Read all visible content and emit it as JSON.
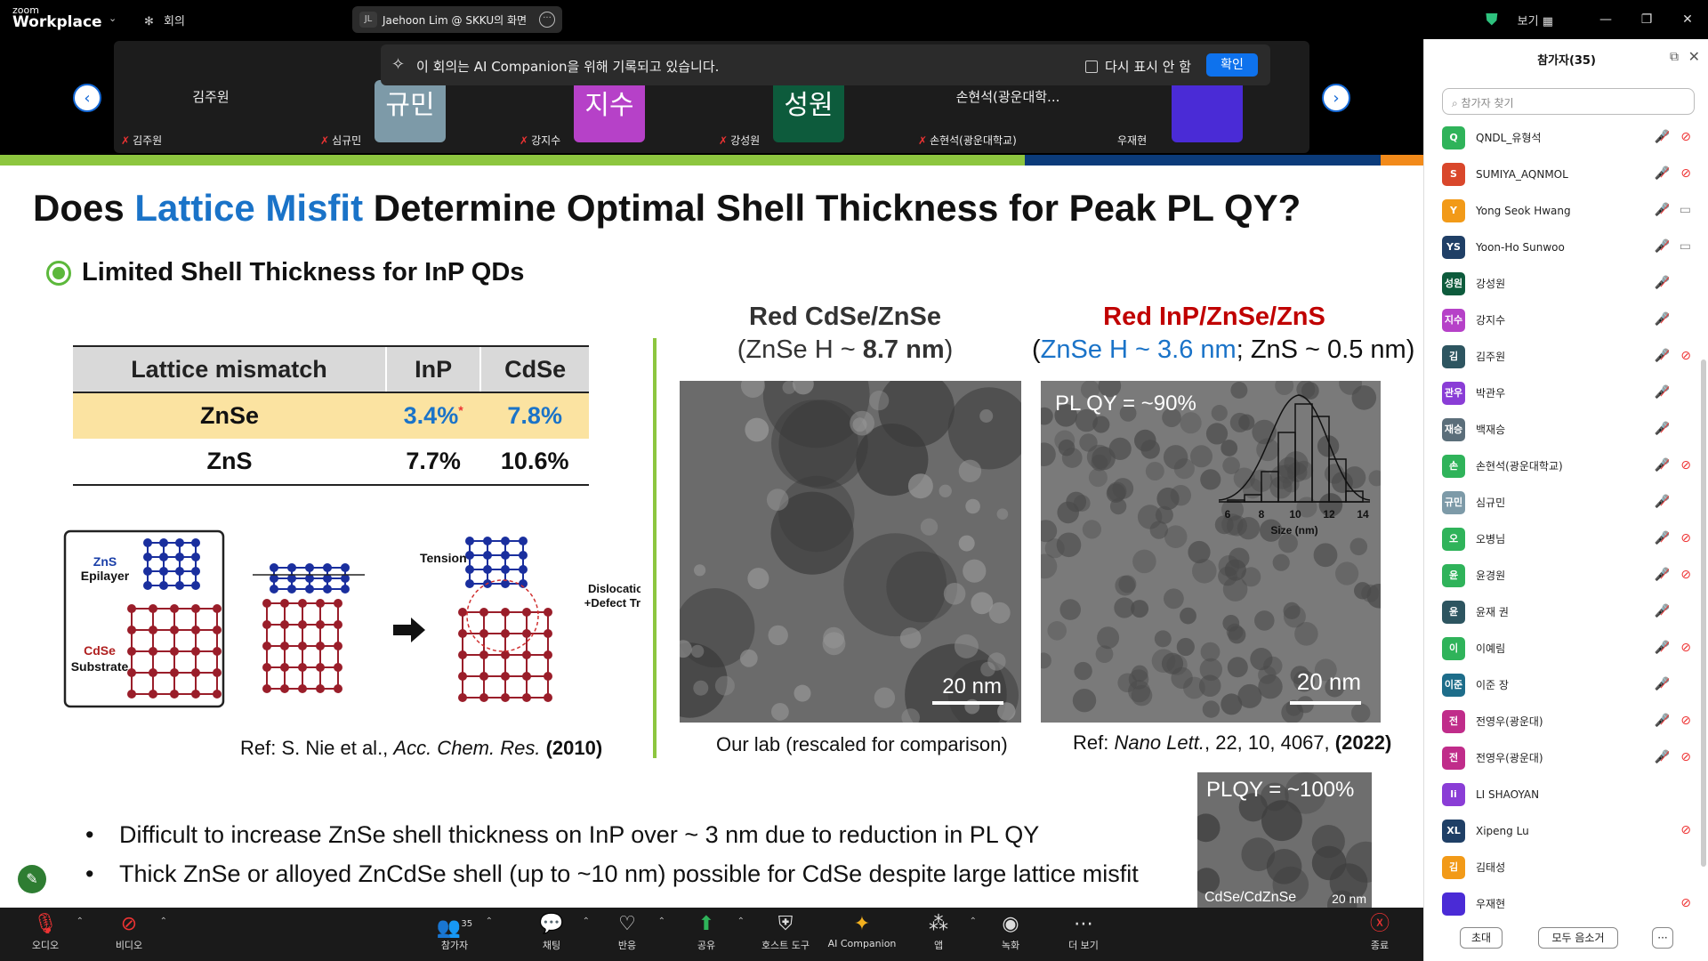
{
  "titlebar": {
    "brand_small": "zoom",
    "brand": "Workplace",
    "meetings_label": "회의",
    "share_avatar": "JL",
    "share_title": "Jaehoon Lim @ SKKU의 화면",
    "view_label": "보기 ▦"
  },
  "gallery": {
    "tiles": [
      {
        "label": "김주원",
        "big_name": "김주원",
        "avatar_text": "",
        "color": ""
      },
      {
        "label": "심규민",
        "big_name": "",
        "avatar_text": "규민",
        "color": "#7d9aa8"
      },
      {
        "label": "강지수",
        "big_name": "",
        "avatar_text": "지수",
        "color": "#b641c8"
      },
      {
        "label": "강성원",
        "big_name": "",
        "avatar_text": "성원",
        "color": "#0d5b3c"
      },
      {
        "label": "손현석(광운대학교)",
        "big_name": "손현석(광운대학...",
        "avatar_text": "",
        "color": ""
      },
      {
        "label": "우재현",
        "big_name": "",
        "avatar_text": "",
        "color": "#4a2bd6"
      }
    ]
  },
  "ai_banner": {
    "text": "이 회의는 AI Companion을 위해 기록되고 있습니다.",
    "checkbox_label": "다시 표시 안 함",
    "confirm": "확인"
  },
  "slide": {
    "title_pre": "Does ",
    "title_highlight": "Lattice Misfit",
    "title_post": " Determine Optimal Shell Thickness for Peak PL QY?",
    "subtitle": "Limited Shell Thickness for InP QDs",
    "table": {
      "headers": [
        "Lattice mismatch",
        "InP",
        "CdSe"
      ],
      "rows": [
        [
          "ZnSe",
          "3.4%",
          "7.8%"
        ],
        [
          "ZnS",
          "7.7%",
          "10.6%"
        ]
      ],
      "marker": "*"
    },
    "lattice_labels": {
      "zns": "ZnS",
      "epilayer": "Epilayer",
      "cdse": "CdSe",
      "substrate": "Substrate",
      "tension": "Tension",
      "dislocation": "Dislocation",
      "defect": "+Defect Trap"
    },
    "ref_left_pre": "Ref: S. Nie et al., ",
    "ref_left_journal": "Acc. Chem. Res.",
    "ref_left_year": "(2010)",
    "col1_title": "Red CdSe/ZnSe",
    "col1_sub_pre": "(ZnSe H ~ ",
    "col1_sub_bold": "8.7 nm",
    "col1_sub_post": ")",
    "col2_title": "Red InP/ZnSe/ZnS",
    "col2_sub_a": "(",
    "col2_sub_b": "ZnSe H ~ 3.6 nm",
    "col2_sub_c": "; ZnS ~ 0.5 nm)",
    "scale1": "20 nm",
    "scale2": "20 nm",
    "plqy1": "PL QY = ~90%",
    "hist_xlabel": "Size (nm)",
    "hist_ticks": [
      "6",
      "8",
      "10",
      "12",
      "14"
    ],
    "caption1": "Our lab (rescaled for comparison)",
    "caption2_pre": "Ref: ",
    "caption2_journal": "Nano Lett.",
    "caption2_mid": ", 22, 10, 4067, ",
    "caption2_year": "(2022)",
    "inset_plqy": "PLQY = ~100%",
    "inset_label": "CdSe/CdZnSe",
    "inset_scale": "20 nm",
    "bullets": [
      "Difficult to increase ZnSe shell thickness on InP over ~ 3 nm due to reduction in PL QY",
      "Thick ZnSe or alloyed ZnCdSe shell (up to ~10 nm) possible for CdSe despite large lattice misfit"
    ]
  },
  "toolbar": {
    "audio": "오디오",
    "video": "비디오",
    "participants": "참가자",
    "participants_count": "35",
    "chat": "채팅",
    "react": "반응",
    "share": "공유",
    "host_tools": "호스트 도구",
    "ai_companion": "AI Companion",
    "apps": "앱",
    "record": "녹화",
    "more": "더 보기",
    "end": "종료"
  },
  "panel": {
    "title": "참가자(35)",
    "search_placeholder": "참가자 찾기",
    "participants": [
      {
        "initial": "Q",
        "name": "QNDL_유형석",
        "color": "#2fb35a",
        "mic_muted": true,
        "cam": "off"
      },
      {
        "initial": "S",
        "name": "SUMIYA_AQNMOL",
        "color": "#d9472b",
        "mic_muted": true,
        "cam": "off"
      },
      {
        "initial": "Y",
        "name": "Yong Seok Hwang",
        "color": "#f29a18",
        "mic_muted": true,
        "cam": "on"
      },
      {
        "initial": "YS",
        "name": "Yoon-Ho Sunwoo",
        "color": "#1f3f66",
        "mic_muted": true,
        "cam": "on"
      },
      {
        "initial": "성원",
        "name": "강성원",
        "color": "#0d5b3c",
        "mic_muted": true,
        "cam": "none"
      },
      {
        "initial": "지수",
        "name": "강지수",
        "color": "#b641c8",
        "mic_muted": true,
        "cam": "none"
      },
      {
        "initial": "김",
        "name": "김주원",
        "color": "#2d5560",
        "mic_muted": true,
        "cam": "off"
      },
      {
        "initial": "관우",
        "name": "박관우",
        "color": "#8a3dd6",
        "mic_muted": true,
        "cam": "none"
      },
      {
        "initial": "재승",
        "name": "백재승",
        "color": "#5b6e7a",
        "mic_muted": true,
        "cam": "none"
      },
      {
        "initial": "손",
        "name": "손현석(광운대학교)",
        "color": "#2fb35a",
        "mic_muted": true,
        "cam": "off"
      },
      {
        "initial": "규민",
        "name": "심규민",
        "color": "#7d9aa8",
        "mic_muted": true,
        "cam": "none"
      },
      {
        "initial": "오",
        "name": "오병님",
        "color": "#2fb35a",
        "mic_muted": true,
        "cam": "off"
      },
      {
        "initial": "윤",
        "name": "윤경원",
        "color": "#2fb35a",
        "mic_muted": true,
        "cam": "off"
      },
      {
        "initial": "윤",
        "name": "윤재 권",
        "color": "#2d5560",
        "mic_muted": true,
        "cam": "none"
      },
      {
        "initial": "이",
        "name": "이예림",
        "color": "#2fb35a",
        "mic_muted": true,
        "cam": "off"
      },
      {
        "initial": "이준",
        "name": "이준 장",
        "color": "#1d6d8a",
        "mic_muted": true,
        "cam": "none"
      },
      {
        "initial": "전",
        "name": "전영우(광운대)",
        "color": "#c02c8a",
        "mic_muted": true,
        "cam": "off"
      },
      {
        "initial": "전",
        "name": "전영우(광운대)",
        "color": "#c02c8a",
        "mic_muted": true,
        "cam": "off"
      },
      {
        "initial": "li",
        "name": "LI SHAOYAN",
        "color": "#8a3dd6",
        "mic_muted": false,
        "cam": "none"
      },
      {
        "initial": "XL",
        "name": "Xipeng Lu",
        "color": "#1f3f66",
        "mic_muted": false,
        "cam": "off"
      },
      {
        "initial": "김",
        "name": "김태성",
        "color": "#f29a18",
        "mic_muted": false,
        "cam": "none"
      },
      {
        "initial": "",
        "name": "우재현",
        "color": "#4a2bd6",
        "mic_muted": false,
        "cam": "off"
      }
    ],
    "invite": "초대",
    "mute_all": "모두 음소거",
    "more": "···"
  }
}
